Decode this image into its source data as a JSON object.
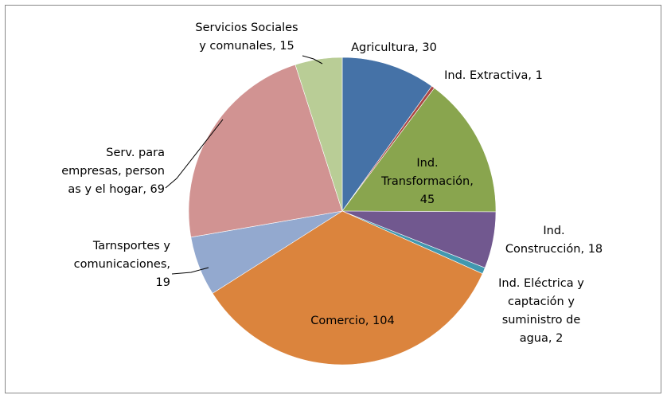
{
  "chart_data": {
    "type": "pie",
    "values": [
      30,
      1,
      45,
      18,
      2,
      104,
      19,
      69,
      15
    ],
    "value_labels": [
      "Agricultura, 30",
      "Ind. Extractiva, 1",
      "Ind.\nTransformación,\n45",
      "Ind.\nConstrucción, 18",
      "Ind. Eléctrica y\ncaptación y\nsuministro de\nagua, 2",
      "Comercio, 104",
      "Tarnsportes y\ncomunicaciones,\n19",
      "Serv. para\nempresas, person\nas y el hogar, 69",
      "Servicios Sociales\ny comunales, 15"
    ],
    "colors": [
      "#4572a7",
      "#aa4643",
      "#89a54e",
      "#71588f",
      "#4198af",
      "#db843d",
      "#93a9cf",
      "#d19392",
      "#b9cd96"
    ]
  }
}
